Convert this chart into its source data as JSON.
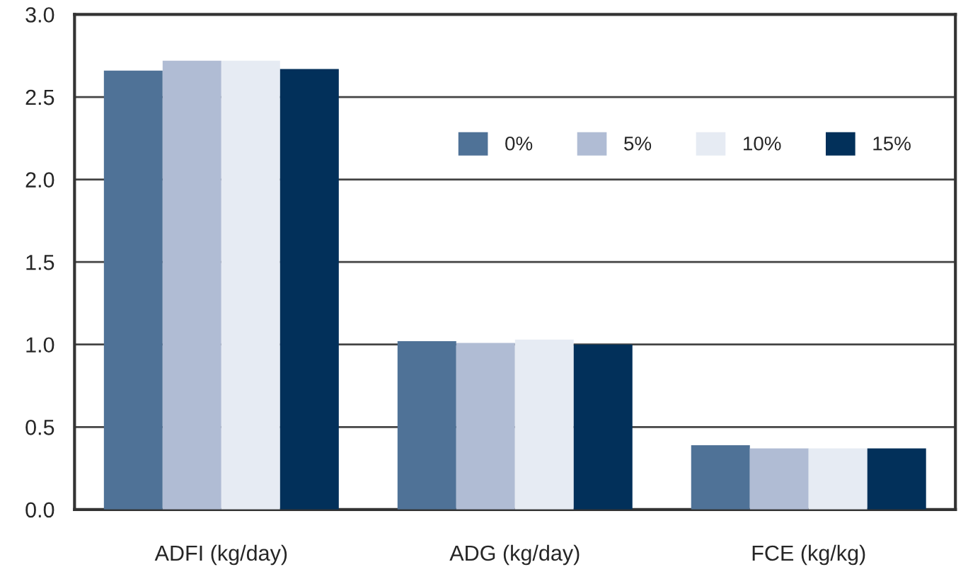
{
  "chart_data": {
    "type": "bar",
    "categories": [
      "ADFI (kg/day)",
      "ADG (kg/day)",
      "FCE (kg/kg)"
    ],
    "series": [
      {
        "name": "0%",
        "color": "#4f7297",
        "values": [
          2.66,
          1.02,
          0.39
        ]
      },
      {
        "name": "5%",
        "color": "#b0bcd4",
        "values": [
          2.72,
          1.01,
          0.37
        ]
      },
      {
        "name": "10%",
        "color": "#e6ebf3",
        "values": [
          2.72,
          1.03,
          0.37
        ]
      },
      {
        "name": "15%",
        "color": "#02305a",
        "values": [
          2.67,
          1.0,
          0.37
        ]
      }
    ],
    "ylim": [
      0,
      3
    ],
    "yticks": [
      {
        "value": 0,
        "label": "0.0"
      },
      0.5,
      {
        "value": 1,
        "label": "1.0"
      },
      1.5,
      {
        "value": 2,
        "label": "2.0"
      },
      2.5,
      {
        "value": 3,
        "label": "3.0"
      }
    ],
    "grid": "y",
    "legend": "top right"
  }
}
